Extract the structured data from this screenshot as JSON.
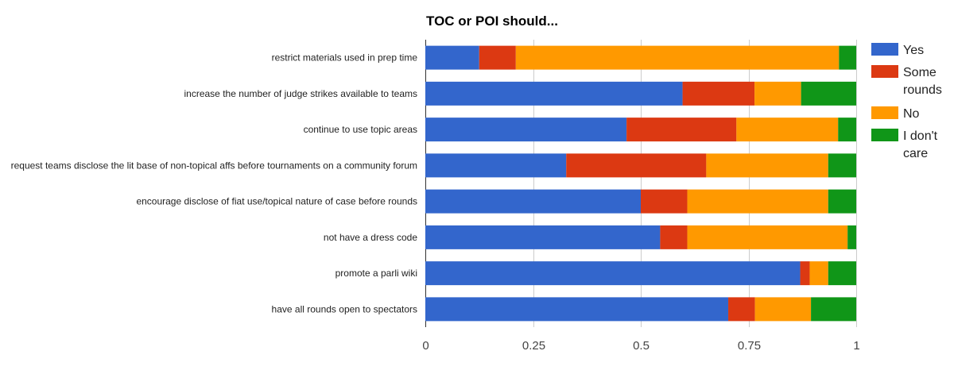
{
  "chart_data": {
    "type": "bar",
    "orientation": "horizontal",
    "stacked": "percent",
    "title": "TOC or POI should...",
    "xlabel": "",
    "ylabel": "",
    "xlim": [
      0,
      1
    ],
    "x_ticks": [
      "0",
      "0.25",
      "0.5",
      "0.75",
      "1"
    ],
    "grid": true,
    "legend_position": "right",
    "categories": [
      "restrict materials used in prep time",
      "increase the number of judge strikes available to teams",
      "continue to use topic areas",
      "request teams disclose the lit base of non-topical affs before tournaments on a community forum",
      "encourage disclose of fiat use/topical nature of case before rounds",
      "not have a dress code",
      "promote a parli wiki",
      "have all rounds open to spectators"
    ],
    "series": [
      {
        "name": "Yes",
        "color": "#3366cc",
        "values": [
          0.125,
          0.597,
          0.467,
          0.327,
          0.5,
          0.545,
          0.87,
          0.703
        ]
      },
      {
        "name": "Some rounds",
        "color": "#dc3912",
        "values": [
          0.085,
          0.167,
          0.255,
          0.325,
          0.108,
          0.063,
          0.022,
          0.062
        ]
      },
      {
        "name": "No",
        "color": "#ff9900",
        "values": [
          0.75,
          0.108,
          0.236,
          0.283,
          0.327,
          0.372,
          0.043,
          0.13
        ]
      },
      {
        "name": "I don't care",
        "color": "#109618",
        "values": [
          0.04,
          0.128,
          0.042,
          0.065,
          0.065,
          0.02,
          0.065,
          0.105
        ]
      }
    ]
  }
}
